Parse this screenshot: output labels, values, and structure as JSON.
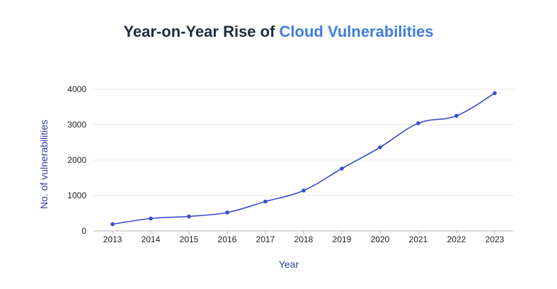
{
  "colors": {
    "title": "#1f2d3d",
    "title_accent": "#3f7ce0",
    "line": "#3b4cc9",
    "axis_label": "#2f3aa5",
    "tick": "#222222",
    "grid": "#e6e6e6",
    "axis": "#b5b5b5"
  },
  "chart_data": {
    "type": "line",
    "title_prefix": "Year-on-Year Rise of",
    "title_highlight": "Cloud Vulnerabilities",
    "xlabel": "Year",
    "ylabel": "No. of vulnerabilities",
    "categories": [
      "2013",
      "2014",
      "2015",
      "2016",
      "2017",
      "2018",
      "2019",
      "2020",
      "2021",
      "2022",
      "2023"
    ],
    "series": [
      {
        "values": [
          190,
          350,
          410,
          520,
          830,
          1140,
          1760,
          2360,
          3040,
          3250,
          3890
        ]
      }
    ],
    "ylim": [
      0,
      4000
    ],
    "yticks": [
      0,
      1000,
      2000,
      3000,
      4000
    ],
    "grid": true,
    "smooth": true
  }
}
